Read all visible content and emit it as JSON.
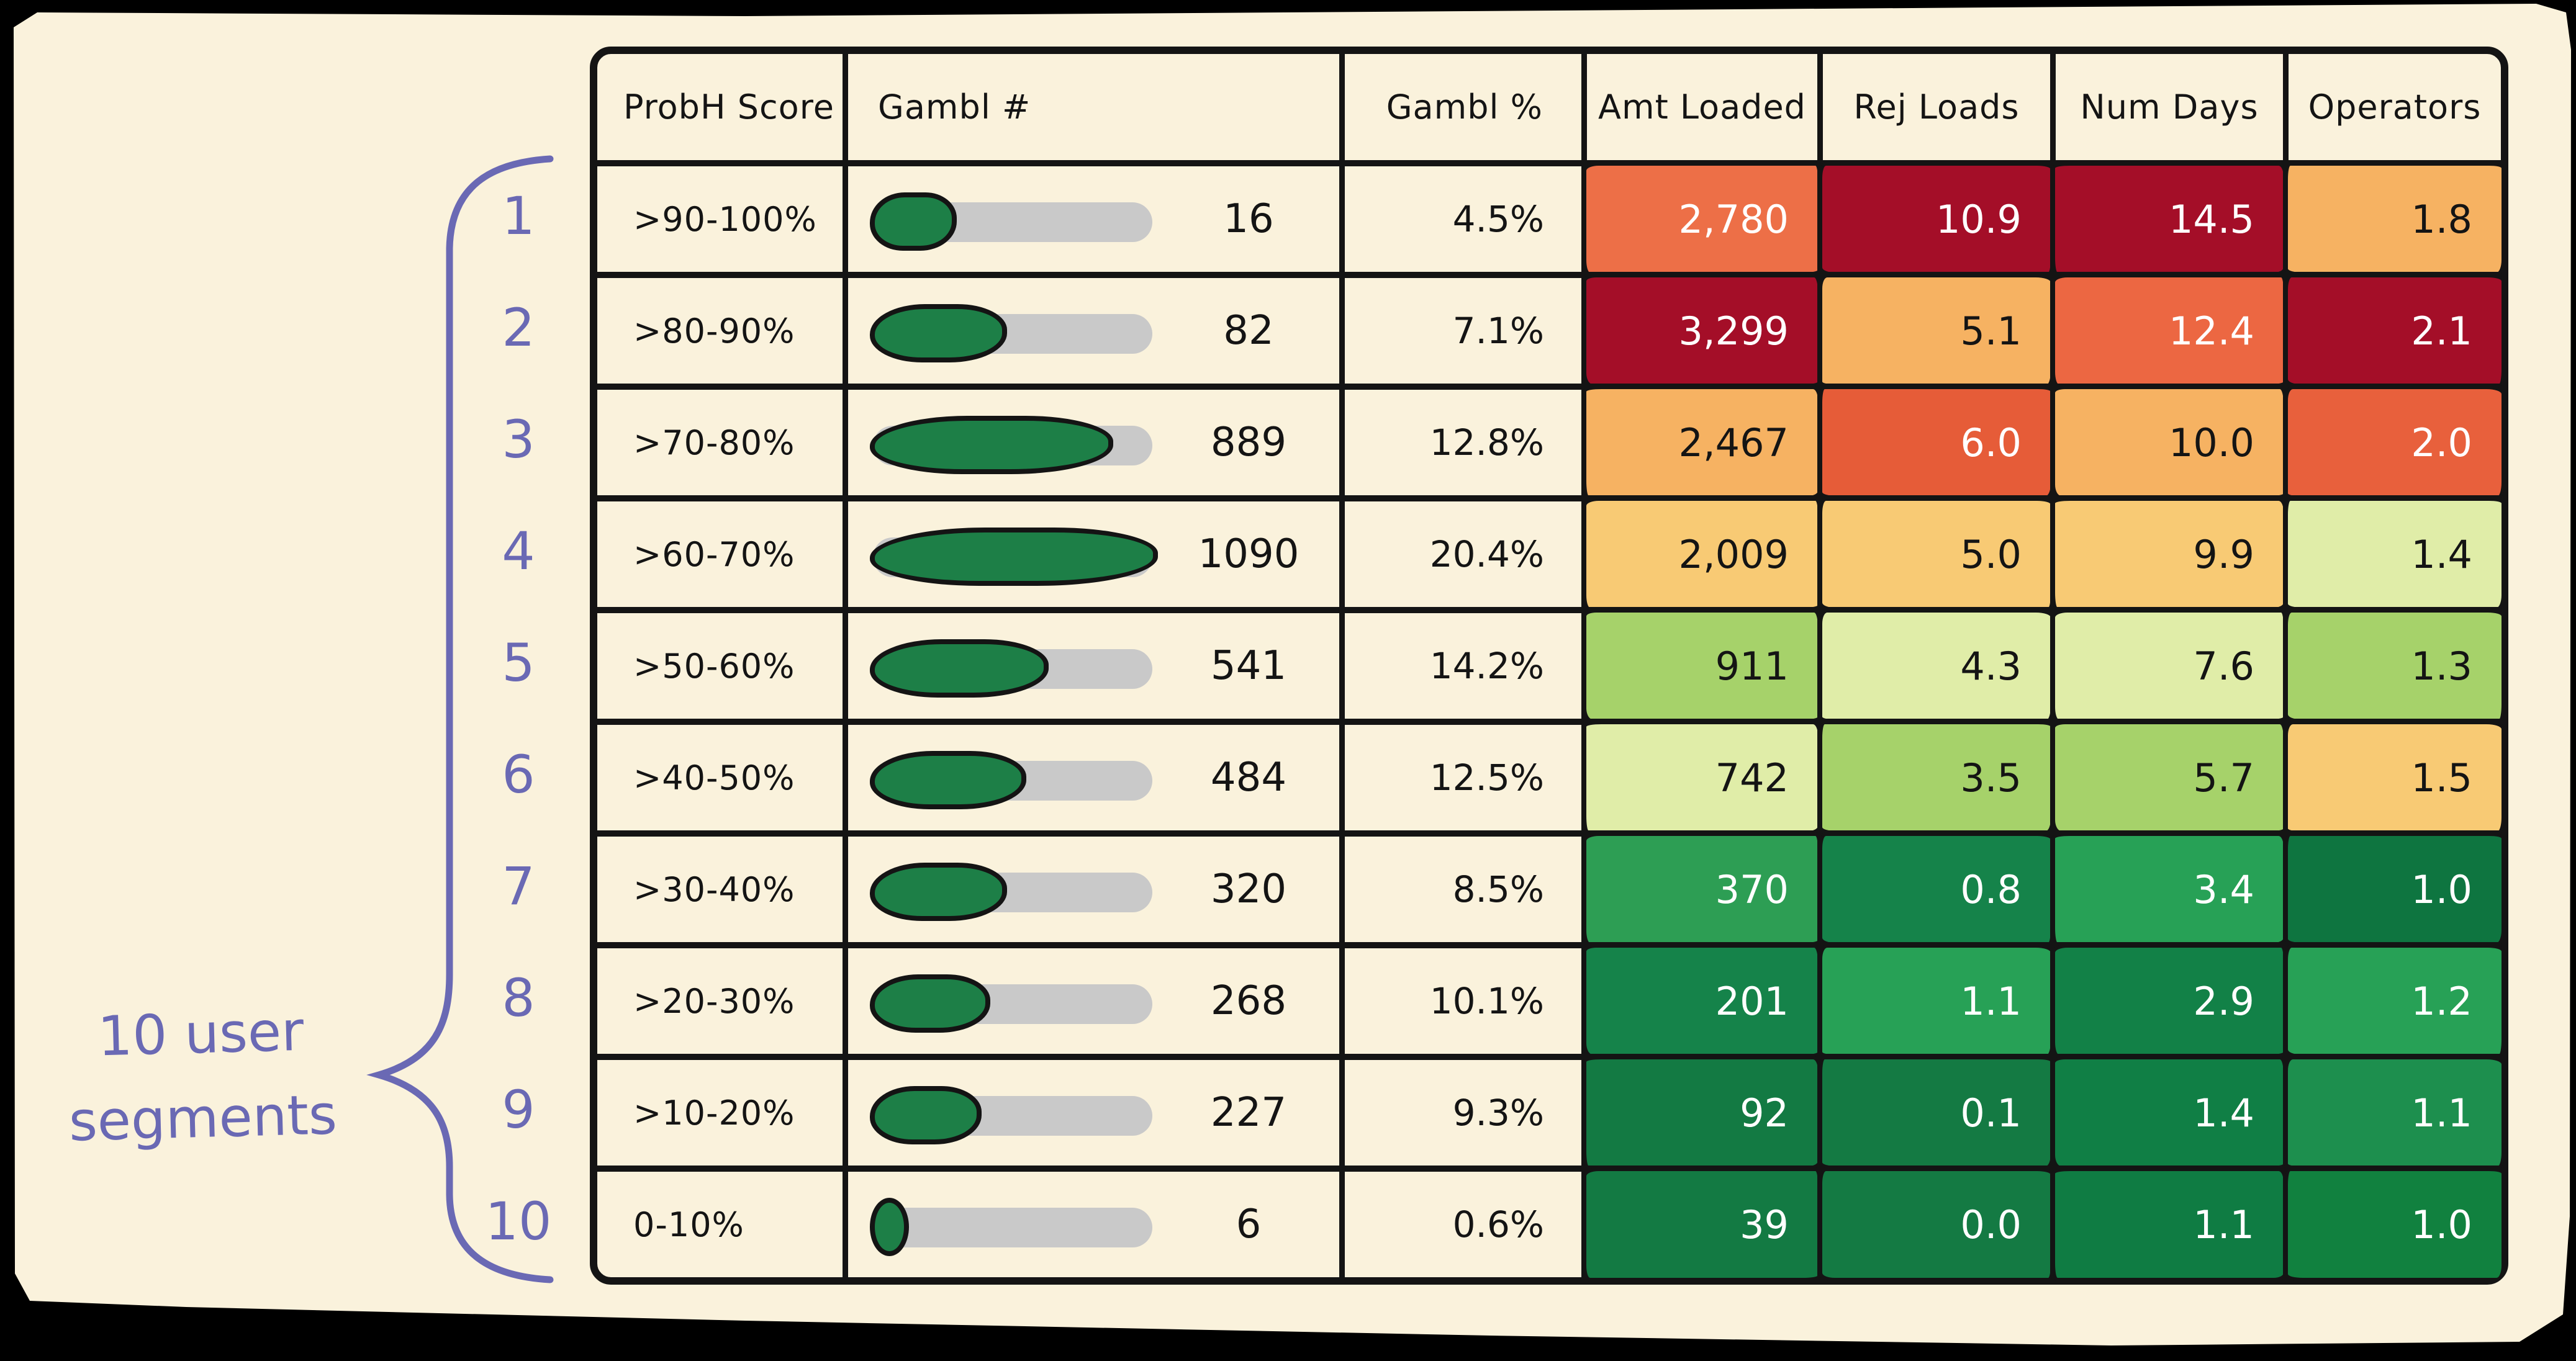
{
  "page": {
    "background": "#000000",
    "card_color": "#faf2dc",
    "ink_color": "#141414"
  },
  "annotation": {
    "line1": "10 user",
    "line2": "segments",
    "full_text": "10 user segments",
    "color": "#6a69b4",
    "brace": "curly-brace spanning all 10 table rows"
  },
  "table": {
    "headers": [
      "ProbH Score",
      "Gambl #",
      "Gambl %",
      "Amt Loaded",
      "Rej Loads",
      "Num Days",
      "Operators"
    ],
    "bar_track_color": "#c9c9c9",
    "bar_fill_color": "#1d7f47",
    "rows": [
      {
        "n": "1",
        "score": ">90-100%",
        "count": "16",
        "bar": 0.31,
        "pct": "4.5%",
        "cells": [
          {
            "t": "2,780",
            "bg": "#ed6f47",
            "fg": "#ffffff"
          },
          {
            "t": "10.9",
            "bg": "#a40e28",
            "fg": "#ffffff"
          },
          {
            "t": "14.5",
            "bg": "#a40e28",
            "fg": "#ffffff"
          },
          {
            "t": "1.8",
            "bg": "#f6b262",
            "fg": "#141414"
          }
        ]
      },
      {
        "n": "2",
        "score": ">80-90%",
        "count": "82",
        "bar": 0.49,
        "pct": "7.1%",
        "cells": [
          {
            "t": "3,299",
            "bg": "#a40e28",
            "fg": "#ffffff"
          },
          {
            "t": "5.1",
            "bg": "#f6b262",
            "fg": "#141414"
          },
          {
            "t": "12.4",
            "bg": "#ec6742",
            "fg": "#ffffff"
          },
          {
            "t": "2.1",
            "bg": "#a40e28",
            "fg": "#ffffff"
          }
        ]
      },
      {
        "n": "3",
        "score": ">70-80%",
        "count": "889",
        "bar": 0.87,
        "pct": "12.8%",
        "cells": [
          {
            "t": "2,467",
            "bg": "#f6b262",
            "fg": "#141414"
          },
          {
            "t": "6.0",
            "bg": "#e65c38",
            "fg": "#ffffff"
          },
          {
            "t": "10.0",
            "bg": "#f6b262",
            "fg": "#141414"
          },
          {
            "t": "2.0",
            "bg": "#e8603c",
            "fg": "#ffffff"
          }
        ]
      },
      {
        "n": "4",
        "score": ">60-70%",
        "count": "1090",
        "bar": 1.0,
        "pct": "20.4%",
        "cells": [
          {
            "t": "2,009",
            "bg": "#f8ca74",
            "fg": "#141414"
          },
          {
            "t": "5.0",
            "bg": "#f8ca74",
            "fg": "#141414"
          },
          {
            "t": "9.9",
            "bg": "#f8ca74",
            "fg": "#141414"
          },
          {
            "t": "1.4",
            "bg": "#e0eda8",
            "fg": "#141414"
          }
        ]
      },
      {
        "n": "5",
        "score": ">50-60%",
        "count": "541",
        "bar": 0.64,
        "pct": "14.2%",
        "cells": [
          {
            "t": "911",
            "bg": "#a6d26a",
            "fg": "#141414"
          },
          {
            "t": "4.3",
            "bg": "#e0eda8",
            "fg": "#141414"
          },
          {
            "t": "7.6",
            "bg": "#e0eda8",
            "fg": "#141414"
          },
          {
            "t": "1.3",
            "bg": "#a6d26a",
            "fg": "#141414"
          }
        ]
      },
      {
        "n": "6",
        "score": ">40-50%",
        "count": "484",
        "bar": 0.56,
        "pct": "12.5%",
        "cells": [
          {
            "t": "742",
            "bg": "#e0eda8",
            "fg": "#141414"
          },
          {
            "t": "3.5",
            "bg": "#a6d26a",
            "fg": "#141414"
          },
          {
            "t": "5.7",
            "bg": "#a6d26a",
            "fg": "#141414"
          },
          {
            "t": "1.5",
            "bg": "#f8ca74",
            "fg": "#141414"
          }
        ]
      },
      {
        "n": "7",
        "score": ">30-40%",
        "count": "320",
        "bar": 0.49,
        "pct": "8.5%",
        "cells": [
          {
            "t": "370",
            "bg": "#2d9e54",
            "fg": "#ffffff"
          },
          {
            "t": "0.8",
            "bg": "#15834a",
            "fg": "#ffffff"
          },
          {
            "t": "3.4",
            "bg": "#27a156",
            "fg": "#ffffff"
          },
          {
            "t": "1.0",
            "bg": "#0e7540",
            "fg": "#ffffff"
          }
        ]
      },
      {
        "n": "8",
        "score": ">20-30%",
        "count": "268",
        "bar": 0.43,
        "pct": "10.1%",
        "cells": [
          {
            "t": "201",
            "bg": "#15834a",
            "fg": "#ffffff"
          },
          {
            "t": "1.1",
            "bg": "#27a156",
            "fg": "#ffffff"
          },
          {
            "t": "2.9",
            "bg": "#128147",
            "fg": "#ffffff"
          },
          {
            "t": "1.2",
            "bg": "#27a156",
            "fg": "#ffffff"
          }
        ]
      },
      {
        "n": "9",
        "score": ">10-20%",
        "count": "227",
        "bar": 0.4,
        "pct": "9.3%",
        "cells": [
          {
            "t": "92",
            "bg": "#137a43",
            "fg": "#ffffff"
          },
          {
            "t": "0.1",
            "bg": "#147a43",
            "fg": "#ffffff"
          },
          {
            "t": "1.4",
            "bg": "#107f45",
            "fg": "#ffffff"
          },
          {
            "t": "1.1",
            "bg": "#1d8f4e",
            "fg": "#ffffff"
          }
        ]
      },
      {
        "n": "10",
        "score": "0-10%",
        "count": "6",
        "bar": 0.14,
        "pct": "0.6%",
        "cells": [
          {
            "t": "39",
            "bg": "#137a43",
            "fg": "#ffffff"
          },
          {
            "t": "0.0",
            "bg": "#147a43",
            "fg": "#ffffff"
          },
          {
            "t": "1.1",
            "bg": "#0f7c43",
            "fg": "#ffffff"
          },
          {
            "t": "1.0",
            "bg": "#11813f",
            "fg": "#ffffff"
          }
        ]
      }
    ]
  },
  "chart_data": {
    "type": "heatmap",
    "title": "",
    "columns": [
      "ProbH Score",
      "Gambl #",
      "Gambl %",
      "Amt Loaded",
      "Rej Loads",
      "Num Days",
      "Operators"
    ],
    "row_labels": [
      "1",
      "2",
      "3",
      "4",
      "5",
      "6",
      "7",
      "8",
      "9",
      "10"
    ],
    "rows": [
      {
        "prob_score": ">90-100%",
        "gambl_n": 16,
        "gambl_pct": 4.5,
        "amt_loaded": 2780,
        "rej_loads": 10.9,
        "num_days": 14.5,
        "operators": 1.8
      },
      {
        "prob_score": ">80-90%",
        "gambl_n": 82,
        "gambl_pct": 7.1,
        "amt_loaded": 3299,
        "rej_loads": 5.1,
        "num_days": 12.4,
        "operators": 2.1
      },
      {
        "prob_score": ">70-80%",
        "gambl_n": 889,
        "gambl_pct": 12.8,
        "amt_loaded": 2467,
        "rej_loads": 6.0,
        "num_days": 10.0,
        "operators": 2.0
      },
      {
        "prob_score": ">60-70%",
        "gambl_n": 1090,
        "gambl_pct": 20.4,
        "amt_loaded": 2009,
        "rej_loads": 5.0,
        "num_days": 9.9,
        "operators": 1.4
      },
      {
        "prob_score": ">50-60%",
        "gambl_n": 541,
        "gambl_pct": 14.2,
        "amt_loaded": 911,
        "rej_loads": 4.3,
        "num_days": 7.6,
        "operators": 1.3
      },
      {
        "prob_score": ">40-50%",
        "gambl_n": 484,
        "gambl_pct": 12.5,
        "amt_loaded": 742,
        "rej_loads": 3.5,
        "num_days": 5.7,
        "operators": 1.5
      },
      {
        "prob_score": ">30-40%",
        "gambl_n": 320,
        "gambl_pct": 8.5,
        "amt_loaded": 370,
        "rej_loads": 0.8,
        "num_days": 3.4,
        "operators": 1.0
      },
      {
        "prob_score": ">20-30%",
        "gambl_n": 268,
        "gambl_pct": 10.1,
        "amt_loaded": 201,
        "rej_loads": 1.1,
        "num_days": 2.9,
        "operators": 1.2
      },
      {
        "prob_score": ">10-20%",
        "gambl_n": 227,
        "gambl_pct": 9.3,
        "amt_loaded": 92,
        "rej_loads": 0.1,
        "num_days": 1.4,
        "operators": 1.1
      },
      {
        "prob_score": "0-10%",
        "gambl_n": 6,
        "gambl_pct": 0.6,
        "amt_loaded": 39,
        "rej_loads": 0.0,
        "num_days": 1.1,
        "operators": 1.0
      }
    ],
    "bar_column": "Gambl #",
    "bar_max": 1090,
    "annotation": "10 user segments",
    "legend_position": "none",
    "color_scale": "dark red (worst) through orange and yellow-green to dark green (best)"
  }
}
